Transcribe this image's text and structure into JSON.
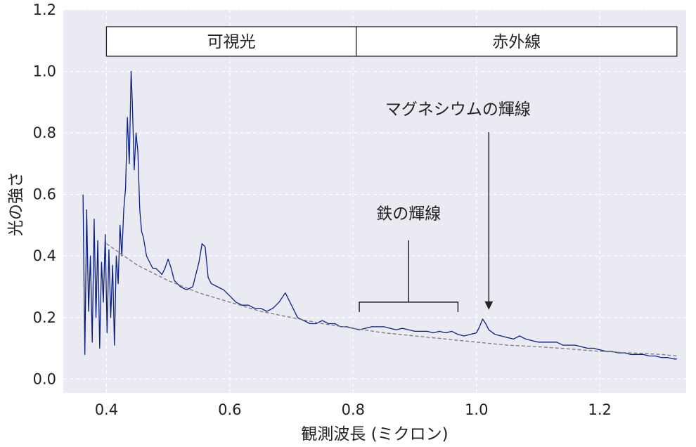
{
  "chart_data": {
    "type": "line",
    "xlabel": "観測波長 (ミクロン)",
    "ylabel": "光の強さ",
    "xlim": [
      0.33,
      1.34
    ],
    "ylim": [
      -0.045,
      1.2
    ],
    "xticks": [
      0.4,
      0.6,
      0.8,
      1.0,
      1.2
    ],
    "xtick_labels": [
      "0.4",
      "0.6",
      "0.8",
      "1.0",
      "1.2"
    ],
    "yticks": [
      0.0,
      0.2,
      0.4,
      0.6,
      0.8,
      1.0,
      1.2
    ],
    "ytick_labels": [
      "0.0",
      "0.2",
      "0.4",
      "0.6",
      "0.8",
      "1.0",
      "1.2"
    ],
    "grid": true,
    "background": "#eaeaf2",
    "line_color": "#0a1f80",
    "continuum_color": "#808080",
    "bands": [
      {
        "label": "可視光",
        "x_start": 0.4,
        "x_end": 0.805
      },
      {
        "label": "赤外線",
        "x_start": 0.805,
        "x_end": 1.325
      }
    ],
    "annotations": [
      {
        "label": "鉄の輝線",
        "type": "bracket",
        "x_start": 0.81,
        "x_end": 0.97,
        "y": 0.25,
        "x_text": 0.89,
        "y_text": 0.52
      },
      {
        "label": "マグネシウムの輝線",
        "type": "arrow",
        "x": 1.02,
        "y_tip": 0.225,
        "x_text": 0.97,
        "y_text": 0.86
      }
    ],
    "series": [
      {
        "style": "solid",
        "x": [
          0.362,
          0.365,
          0.368,
          0.371,
          0.374,
          0.377,
          0.38,
          0.383,
          0.386,
          0.389,
          0.392,
          0.395,
          0.398,
          0.401,
          0.404,
          0.407,
          0.41,
          0.413,
          0.416,
          0.419,
          0.422,
          0.425,
          0.428,
          0.431,
          0.434,
          0.437,
          0.44,
          0.442,
          0.445,
          0.448,
          0.451,
          0.454,
          0.457,
          0.46,
          0.465,
          0.47,
          0.475,
          0.48,
          0.485,
          0.49,
          0.495,
          0.5,
          0.505,
          0.51,
          0.515,
          0.52,
          0.53,
          0.54,
          0.55,
          0.555,
          0.56,
          0.565,
          0.57,
          0.58,
          0.59,
          0.6,
          0.61,
          0.62,
          0.63,
          0.64,
          0.65,
          0.66,
          0.67,
          0.68,
          0.69,
          0.7,
          0.71,
          0.72,
          0.73,
          0.74,
          0.75,
          0.76,
          0.77,
          0.78,
          0.79,
          0.8,
          0.81,
          0.82,
          0.83,
          0.84,
          0.85,
          0.86,
          0.87,
          0.88,
          0.89,
          0.9,
          0.91,
          0.92,
          0.93,
          0.94,
          0.95,
          0.96,
          0.97,
          0.98,
          0.99,
          1.0,
          1.005,
          1.01,
          1.015,
          1.02,
          1.03,
          1.04,
          1.05,
          1.06,
          1.07,
          1.08,
          1.09,
          1.1,
          1.11,
          1.12,
          1.13,
          1.14,
          1.15,
          1.16,
          1.17,
          1.18,
          1.19,
          1.2,
          1.21,
          1.22,
          1.23,
          1.24,
          1.25,
          1.26,
          1.27,
          1.28,
          1.29,
          1.3,
          1.31,
          1.32,
          1.325
        ],
        "y": [
          0.6,
          0.08,
          0.55,
          0.22,
          0.4,
          0.12,
          0.52,
          0.2,
          0.45,
          0.1,
          0.38,
          0.25,
          0.47,
          0.15,
          0.42,
          0.2,
          0.37,
          0.11,
          0.4,
          0.31,
          0.5,
          0.4,
          0.55,
          0.62,
          0.85,
          0.7,
          1.0,
          0.9,
          0.68,
          0.8,
          0.74,
          0.55,
          0.48,
          0.46,
          0.4,
          0.38,
          0.36,
          0.36,
          0.35,
          0.34,
          0.36,
          0.39,
          0.36,
          0.32,
          0.31,
          0.3,
          0.29,
          0.3,
          0.38,
          0.44,
          0.43,
          0.33,
          0.31,
          0.3,
          0.29,
          0.27,
          0.25,
          0.24,
          0.24,
          0.23,
          0.23,
          0.22,
          0.23,
          0.25,
          0.28,
          0.24,
          0.2,
          0.19,
          0.18,
          0.18,
          0.19,
          0.18,
          0.18,
          0.17,
          0.17,
          0.165,
          0.16,
          0.165,
          0.17,
          0.17,
          0.17,
          0.165,
          0.16,
          0.165,
          0.16,
          0.155,
          0.155,
          0.155,
          0.15,
          0.155,
          0.15,
          0.155,
          0.145,
          0.14,
          0.145,
          0.15,
          0.17,
          0.195,
          0.18,
          0.16,
          0.145,
          0.14,
          0.135,
          0.13,
          0.14,
          0.13,
          0.125,
          0.12,
          0.12,
          0.12,
          0.12,
          0.11,
          0.11,
          0.11,
          0.105,
          0.1,
          0.1,
          0.095,
          0.09,
          0.09,
          0.085,
          0.085,
          0.08,
          0.08,
          0.08,
          0.075,
          0.075,
          0.07,
          0.07,
          0.065,
          0.065
        ]
      },
      {
        "style": "dashed",
        "x": [
          0.4,
          0.45,
          0.5,
          0.55,
          0.6,
          0.65,
          0.7,
          0.75,
          0.8,
          0.85,
          0.9,
          0.95,
          1.0,
          1.05,
          1.1,
          1.15,
          1.2,
          1.25,
          1.3,
          1.325
        ],
        "y": [
          0.44,
          0.37,
          0.32,
          0.28,
          0.25,
          0.22,
          0.2,
          0.18,
          0.165,
          0.15,
          0.14,
          0.13,
          0.12,
          0.11,
          0.105,
          0.098,
          0.09,
          0.085,
          0.08,
          0.075
        ]
      }
    ]
  }
}
